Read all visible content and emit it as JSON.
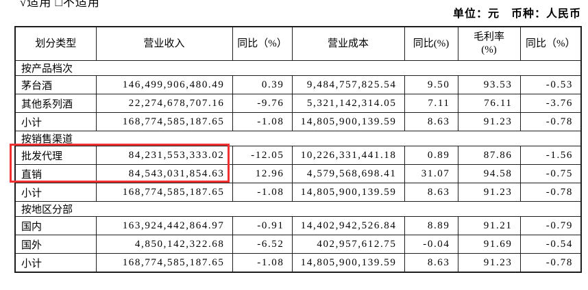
{
  "notes": {
    "applicability": "√适用 □不适用",
    "unit_currency": "单位：元　币种：人民币"
  },
  "highlight": {
    "color": "#f03030",
    "rows": [
      "批发代理",
      "直销"
    ],
    "columns": [
      "划分类型",
      "营业收入"
    ]
  },
  "table": {
    "headers": [
      {
        "text": "划分类型"
      },
      {
        "text": "营业收入"
      },
      {
        "text": "同比（%）"
      },
      {
        "text": "营业成本"
      },
      {
        "text": "同比(%)"
      },
      {
        "text": "毛利率",
        "sub": "(%)"
      },
      {
        "text": "同比（%）"
      }
    ],
    "sections": [
      {
        "title": "按产品档次",
        "rows": [
          {
            "label": "茅台酒",
            "revenue": "146,499,906,480.49",
            "revenue_yoy": "0.39",
            "cost": "9,484,757,825.54",
            "cost_yoy": "9.50",
            "margin": "93.53",
            "margin_yoy": "-0.53"
          },
          {
            "label": "其他系列酒",
            "revenue": "22,274,678,707.16",
            "revenue_yoy": "-9.76",
            "cost": "5,321,142,314.05",
            "cost_yoy": "7.11",
            "margin": "76.11",
            "margin_yoy": "-3.76"
          },
          {
            "label": "小计",
            "revenue": "168,774,585,187.65",
            "revenue_yoy": "-1.08",
            "cost": "14,805,900,139.59",
            "cost_yoy": "8.63",
            "margin": "91.23",
            "margin_yoy": "-0.78"
          }
        ]
      },
      {
        "title": "按销售渠道",
        "rows": [
          {
            "label": "批发代理",
            "revenue": "84,231,553,333.02",
            "revenue_yoy": "-12.05",
            "cost": "10,226,331,441.18",
            "cost_yoy": "0.89",
            "margin": "87.86",
            "margin_yoy": "-1.56",
            "highlighted": true
          },
          {
            "label": "直销",
            "revenue": "84,543,031,854.63",
            "revenue_yoy": "12.96",
            "cost": "4,579,568,698.41",
            "cost_yoy": "31.07",
            "margin": "94.58",
            "margin_yoy": "-0.75",
            "highlighted": true
          },
          {
            "label": "小计",
            "revenue": "168,774,585,187.65",
            "revenue_yoy": "-1.08",
            "cost": "14,805,900,139.59",
            "cost_yoy": "8.63",
            "margin": "91.23",
            "margin_yoy": "-0.78"
          }
        ]
      },
      {
        "title": "按地区分部",
        "rows": [
          {
            "label": "国内",
            "revenue": "163,924,442,864.97",
            "revenue_yoy": "-0.91",
            "cost": "14,402,942,526.84",
            "cost_yoy": "8.89",
            "margin": "91.21",
            "margin_yoy": "-0.79"
          },
          {
            "label": "国外",
            "revenue": "4,850,142,322.68",
            "revenue_yoy": "-6.52",
            "cost": "402,957,612.75",
            "cost_yoy": "-0.04",
            "margin": "91.69",
            "margin_yoy": "-0.54"
          },
          {
            "label": "小计",
            "revenue": "168,774,585,187.65",
            "revenue_yoy": "-1.08",
            "cost": "14,805,900,139.59",
            "cost_yoy": "8.63",
            "margin": "91.23",
            "margin_yoy": "-0.78"
          }
        ]
      }
    ]
  }
}
